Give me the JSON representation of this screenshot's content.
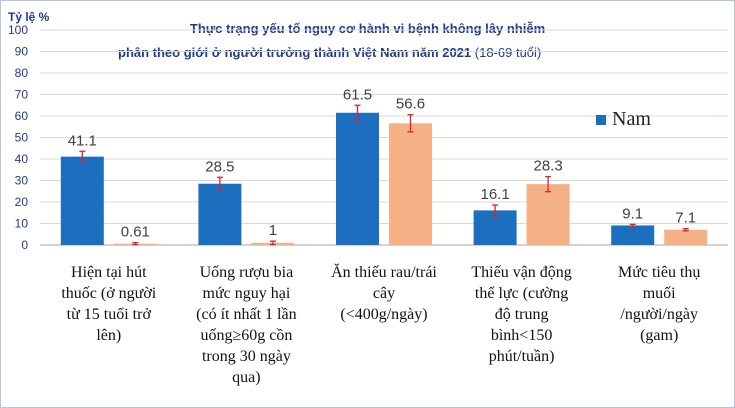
{
  "chart_data": {
    "type": "bar",
    "title_line1": "Thực trạng yếu tố nguy cơ hành vi bệnh không lây nhiễm",
    "title_line2_bold": "phân theo giới  ở người trưởng thành Việt Nam năm 2021",
    "title_line2_rest": " (18-69 tuổi)",
    "ylabel": "Tỷ lệ %",
    "ylim": [
      0,
      100
    ],
    "yticks": [
      0,
      10,
      20,
      30,
      40,
      50,
      60,
      70,
      80,
      90,
      100
    ],
    "grid": true,
    "legend_position": "right",
    "categories": [
      [
        "Hiện tại hút",
        "thuốc  (ở người",
        "từ 15 tuổi trở",
        "lên)"
      ],
      [
        "Uống  rượu bia",
        "mức  nguy  hại",
        "(có ít nhất  1 lần",
        "uống≥60g  cồn",
        "trong  30 ngày",
        "qua)"
      ],
      [
        "Ăn thiếu rau/trái",
        "cây",
        "(<400g/ngày)"
      ],
      [
        "Thiếu vận động",
        "thể lực (cường",
        "độ trung",
        "bình<150",
        "phút/tuần)"
      ],
      [
        "Mức tiêu thụ",
        "muối",
        "/người/ngày",
        "(gam)"
      ]
    ],
    "series": [
      {
        "name": "Nam",
        "color": "#1c6fbe",
        "values": [
          41.1,
          28.5,
          61.5,
          16.1,
          9.1
        ],
        "labels": [
          "41.1",
          "28.5",
          "61.5",
          "16.1",
          "9.1"
        ],
        "error": [
          2.5,
          3,
          3.5,
          2.5,
          0.5
        ]
      },
      {
        "name": "",
        "color": "#f5b086",
        "values": [
          0.61,
          1,
          56.6,
          28.3,
          7.1
        ],
        "labels": [
          "0.61",
          "1",
          "56.6",
          "28.3",
          "7.1"
        ],
        "error": [
          0.5,
          0.8,
          4,
          3.5,
          0.5
        ]
      }
    ]
  }
}
